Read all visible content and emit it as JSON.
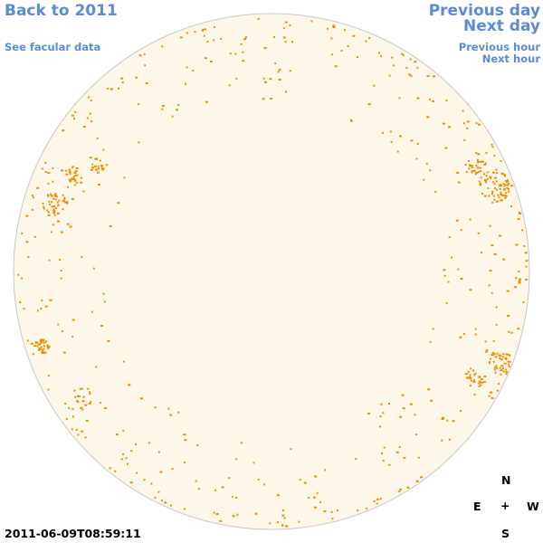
{
  "nav": {
    "back": "Back to 2011",
    "facular": "See facular data",
    "previous_day": "Previous day",
    "next_day": "Next day",
    "previous_hour": "Previous hour",
    "next_hour": "Next hour"
  },
  "timestamp": "2011-06-09T08:59:11",
  "compass": {
    "n": "N",
    "e": "E",
    "plus": "+",
    "w": "W",
    "s": "S"
  },
  "colors": {
    "disk_fill": "#fdf7e9",
    "disk_stroke": "#c8c8c8",
    "feature": "#f08c00"
  }
}
